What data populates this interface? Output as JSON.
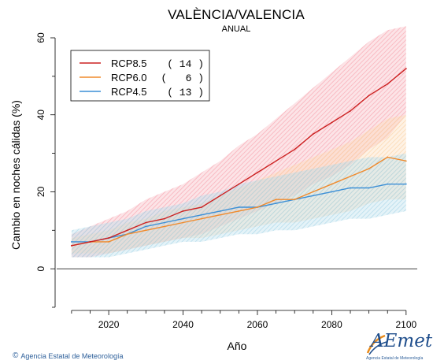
{
  "chart_data": {
    "type": "line",
    "title": "VALÈNCIA/VALENCIA",
    "subtitle": "ANUAL",
    "xlabel": "Año",
    "ylabel": "Cambio en noches cálidas (%)",
    "xlim": [
      2006,
      2103
    ],
    "ylim": [
      -10,
      60
    ],
    "xticks": [
      2020,
      2040,
      2060,
      2080,
      2100
    ],
    "yticks": [
      0,
      20,
      40,
      60
    ],
    "reference_line": 0,
    "legend_position": "top-left",
    "series": [
      {
        "name": "RCP8.5",
        "count": "( 14 )",
        "color": "#cc2222",
        "band_color": "#f7a3ae",
        "x": [
          2010,
          2015,
          2020,
          2025,
          2030,
          2035,
          2040,
          2045,
          2050,
          2055,
          2060,
          2065,
          2070,
          2075,
          2080,
          2085,
          2090,
          2095,
          2100
        ],
        "values": [
          6,
          7,
          8,
          10,
          12,
          13,
          15,
          16,
          19,
          22,
          25,
          28,
          31,
          35,
          38,
          41,
          45,
          48,
          52
        ],
        "low": [
          3,
          3,
          4,
          5,
          6,
          7,
          8,
          9,
          11,
          13,
          15,
          17,
          19,
          22,
          24,
          27,
          31,
          34,
          40
        ],
        "high": [
          9,
          11,
          13,
          15,
          18,
          20,
          22,
          25,
          28,
          32,
          35,
          39,
          43,
          47,
          51,
          55,
          59,
          62,
          63
        ]
      },
      {
        "name": "RCP6.0",
        "count": "(   6 )",
        "color": "#f08a2c",
        "band_color": "#fbd2a5",
        "x": [
          2010,
          2015,
          2020,
          2025,
          2030,
          2035,
          2040,
          2045,
          2050,
          2055,
          2060,
          2065,
          2070,
          2075,
          2080,
          2085,
          2090,
          2095,
          2100
        ],
        "values": [
          6,
          7,
          7,
          9,
          10,
          11,
          12,
          13,
          14,
          15,
          16,
          18,
          18,
          20,
          22,
          24,
          26,
          29,
          28
        ],
        "low": [
          4,
          4,
          4,
          5,
          6,
          7,
          8,
          8,
          9,
          10,
          11,
          12,
          12,
          13,
          14,
          15,
          17,
          18,
          18
        ],
        "high": [
          8,
          9,
          10,
          12,
          13,
          15,
          16,
          17,
          19,
          21,
          23,
          25,
          27,
          29,
          31,
          33,
          36,
          39,
          40
        ]
      },
      {
        "name": "RCP4.5",
        "count": "( 13 )",
        "color": "#3c8fd6",
        "band_color": "#a8d6e8",
        "x": [
          2010,
          2015,
          2020,
          2025,
          2030,
          2035,
          2040,
          2045,
          2050,
          2055,
          2060,
          2065,
          2070,
          2075,
          2080,
          2085,
          2090,
          2095,
          2100
        ],
        "values": [
          7,
          7,
          8,
          9,
          11,
          12,
          13,
          14,
          15,
          16,
          16,
          17,
          18,
          19,
          20,
          21,
          21,
          22,
          22
        ],
        "low": [
          3,
          3,
          3,
          4,
          5,
          6,
          7,
          7,
          8,
          9,
          9,
          10,
          10,
          11,
          12,
          13,
          13,
          14,
          15
        ],
        "high": [
          10,
          11,
          12,
          13,
          15,
          16,
          17,
          19,
          20,
          22,
          23,
          24,
          25,
          26,
          27,
          28,
          29,
          29,
          30
        ]
      }
    ]
  },
  "footer": {
    "copyright_symbol": "©",
    "agency": "Agencia Estatal de Meteorología"
  },
  "logo": {
    "wordmark": "AEmet",
    "tagline": "Agencia Estatal de Meteorología"
  }
}
